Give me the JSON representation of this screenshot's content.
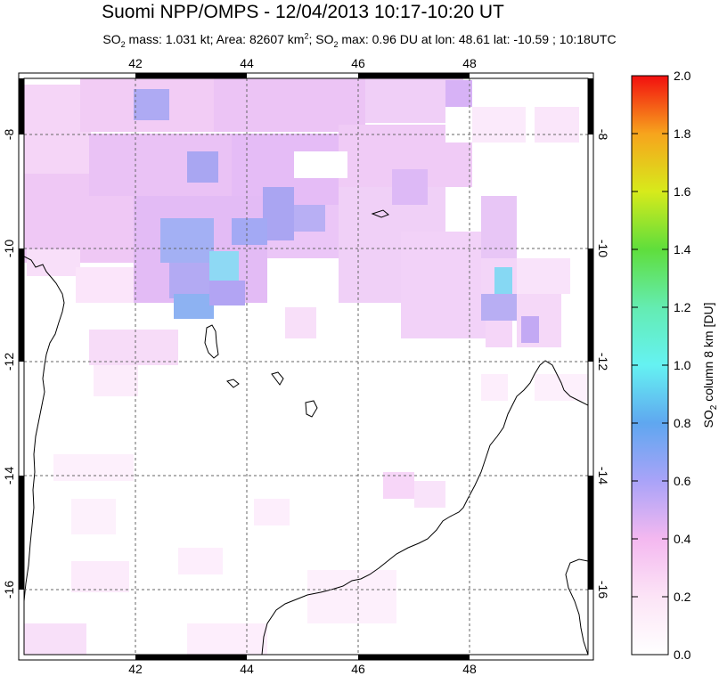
{
  "header": {
    "title": "Suomi NPP/OMPS - 12/04/2013 10:17-10:20 UT",
    "subtitle": {
      "so2_prefix": "SO",
      "so2_sub": "2",
      "mass_text": " mass: 1.031 kt; Area: 82607 km",
      "area_sup": "2",
      "so2max_prefix": "; SO",
      "so2max_sub": "2",
      "rest": " max: 0.96 DU at lon: 48.61 lat: -10.59 ; 10:18UTC"
    }
  },
  "map": {
    "lon_ticks": [
      "42",
      "44",
      "46",
      "48"
    ],
    "lat_ticks": [
      "-8",
      "-10",
      "-12",
      "-14",
      "-16"
    ]
  },
  "colorbar": {
    "ticks": [
      "0.0",
      "0.2",
      "0.4",
      "0.6",
      "0.8",
      "1.0",
      "1.2",
      "1.4",
      "1.6",
      "1.8",
      "2.0"
    ],
    "label_prefix": "SO",
    "label_sub": "2",
    "label_rest": " column 8 km [DU]"
  }
}
